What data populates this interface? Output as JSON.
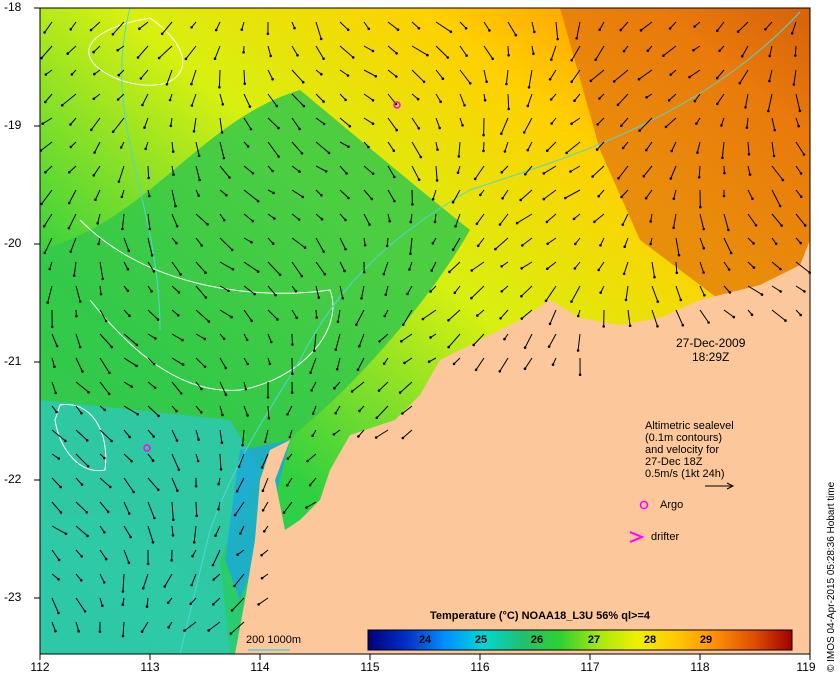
{
  "map": {
    "land_color": "#fcc89b",
    "y_ticks": [
      "-18",
      "-19",
      "-20",
      "-21",
      "-22",
      "-23"
    ],
    "x_ticks": [
      "112",
      "113",
      "114",
      "115",
      "116",
      "117",
      "118",
      "119"
    ]
  },
  "info": {
    "date": "27-Dec-2009",
    "time": "18:29Z",
    "description_lines": [
      "Altimetric sealevel",
      "(0.1m contours)",
      "and velocity for",
      "27-Dec 18Z",
      "0.5m/s (1kt 24h)"
    ],
    "argo_label": "Argo",
    "drifter_label": "drifter",
    "isobath_label": "200  1000m",
    "argo_color": "#ff00ff",
    "drifter_color": "#ff00ff",
    "isobath_color": "#4fd6d6"
  },
  "colorbar": {
    "title": "Temperature (°C) NOAA18_L3U 56% ql>=4",
    "ticks": [
      "24",
      "25",
      "26",
      "27",
      "28",
      "29"
    ],
    "colors": [
      "#00007a",
      "#0030c8",
      "#0090ff",
      "#00d8d8",
      "#20c070",
      "#30d030",
      "#a8e810",
      "#f0f000",
      "#ffc800",
      "#ff9000",
      "#e05000",
      "#a00000"
    ]
  },
  "credit": "© IMOS 04-Apr-2015 05:28:36 Hobart time"
}
